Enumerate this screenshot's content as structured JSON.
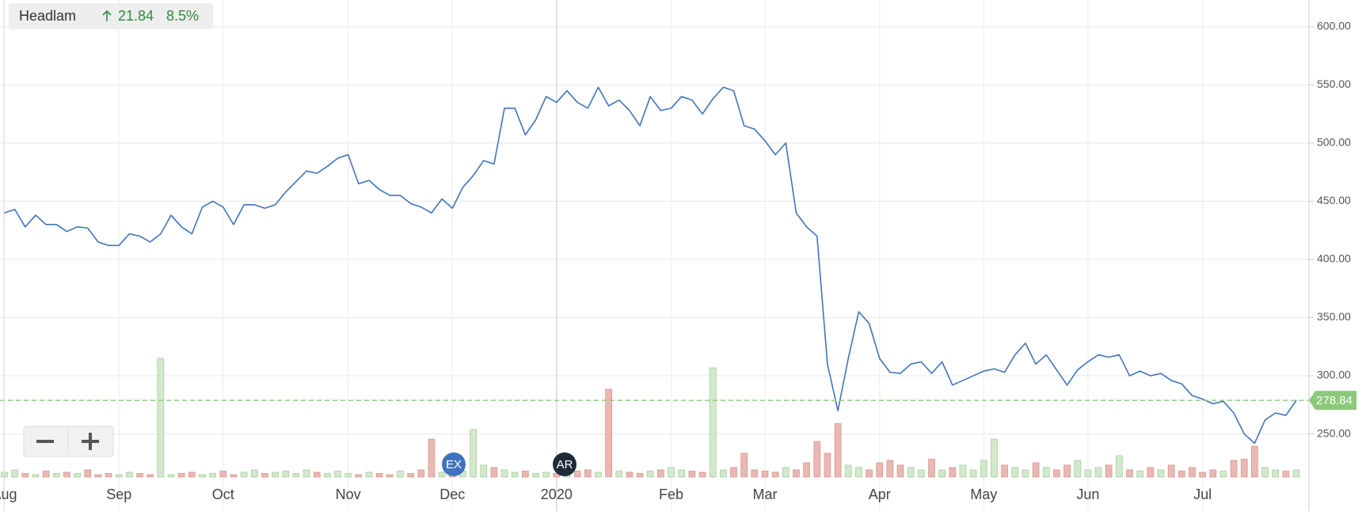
{
  "chart_data": {
    "type": "line",
    "change": 21.84,
    "change_percent": "8.5%",
    "categories": [
      "Aug",
      null,
      null,
      null,
      null,
      null,
      null,
      null,
      null,
      null,
      null,
      "Sep",
      null,
      null,
      null,
      null,
      null,
      null,
      null,
      null,
      null,
      "Oct",
      null,
      null,
      null,
      null,
      null,
      null,
      null,
      null,
      null,
      null,
      null,
      "Nov",
      null,
      null,
      null,
      null,
      null,
      null,
      null,
      null,
      null,
      "Dec",
      null,
      null,
      null,
      null,
      null,
      null,
      null,
      null,
      null,
      "2020",
      null,
      null,
      null,
      null,
      null,
      null,
      null,
      null,
      null,
      null,
      "Feb",
      null,
      null,
      null,
      null,
      null,
      null,
      null,
      null,
      "Mar",
      null,
      null,
      null,
      null,
      null,
      null,
      null,
      null,
      null,
      null,
      "Apr",
      null,
      null,
      null,
      null,
      null,
      null,
      null,
      null,
      null,
      "May",
      null,
      null,
      null,
      null,
      null,
      null,
      null,
      null,
      null,
      "Jun",
      null,
      null,
      null,
      null,
      null,
      null,
      null,
      null,
      null,
      null,
      "Jul",
      null,
      null,
      null,
      null,
      null,
      null,
      null,
      null,
      null
    ],
    "series": [
      {
        "name": "Headlam",
        "color": "#3f74bd",
        "values": [
          440,
          443,
          428,
          438,
          430,
          430,
          424,
          428,
          427,
          415,
          412,
          412,
          422,
          420,
          415,
          422,
          438,
          428,
          422,
          445,
          450,
          445,
          430,
          447,
          447,
          444,
          447,
          458,
          467,
          476,
          474,
          480,
          487,
          490,
          465,
          468,
          460,
          455,
          455,
          448,
          445,
          440,
          452,
          444,
          462,
          472,
          485,
          482,
          530,
          530,
          507,
          520,
          540,
          535,
          545,
          535,
          530,
          548,
          532,
          537,
          528,
          515,
          540,
          528,
          530,
          540,
          537,
          525,
          538,
          548,
          545,
          515,
          512,
          502,
          490,
          500,
          440,
          428,
          420,
          310,
          270,
          315,
          355,
          345,
          315,
          303,
          302,
          310,
          312,
          302,
          312,
          292,
          296,
          300,
          304,
          306,
          303,
          318,
          328,
          310,
          318,
          305,
          292,
          305,
          312,
          318,
          316,
          318,
          300,
          304,
          300,
          302,
          296,
          293,
          283,
          280,
          276,
          278,
          268,
          250,
          242,
          262,
          268,
          266,
          278.84
        ]
      }
    ],
    "volume": {
      "up_color": "#d3e8cc",
      "down_color": "#eab8b3",
      "values": [
        4,
        6,
        3,
        2,
        5,
        3,
        4,
        3,
        6,
        2,
        3,
        2,
        4,
        3,
        2,
        100,
        2,
        3,
        4,
        2,
        3,
        5,
        2,
        4,
        6,
        3,
        4,
        5,
        3,
        6,
        4,
        3,
        5,
        3,
        2,
        4,
        3,
        2,
        5,
        3,
        6,
        32,
        4,
        12,
        5,
        40,
        10,
        8,
        6,
        4,
        5,
        3,
        4,
        3,
        2,
        5,
        6,
        4,
        74,
        5,
        4,
        3,
        5,
        6,
        8,
        6,
        5,
        4,
        92,
        6,
        8,
        20,
        6,
        5,
        4,
        8,
        6,
        12,
        30,
        20,
        45,
        10,
        8,
        6,
        12,
        14,
        10,
        8,
        6,
        15,
        6,
        8,
        10,
        6,
        14,
        32,
        10,
        8,
        6,
        12,
        8,
        6,
        10,
        14,
        6,
        8,
        10,
        18,
        6,
        5,
        8,
        6,
        10,
        5,
        8,
        4,
        6,
        5,
        14,
        15,
        26,
        8,
        6,
        5,
        6
      ]
    },
    "events": [
      "EX",
      "AR"
    ],
    "last_price_color": "#8cc97a",
    "ylim": [
      213,
      623
    ],
    "yticks": [
      {
        "value": 600,
        "label": "600.00"
      },
      {
        "value": 550,
        "label": "550.00"
      },
      {
        "value": 500,
        "label": "500.00"
      },
      {
        "value": 450,
        "label": "450.00"
      },
      {
        "value": 400,
        "label": "400.00"
      },
      {
        "value": 350,
        "label": "350.00"
      },
      {
        "value": 300,
        "label": "300.00"
      },
      {
        "value": 250,
        "label": "250.00"
      }
    ],
    "grid": true
  }
}
